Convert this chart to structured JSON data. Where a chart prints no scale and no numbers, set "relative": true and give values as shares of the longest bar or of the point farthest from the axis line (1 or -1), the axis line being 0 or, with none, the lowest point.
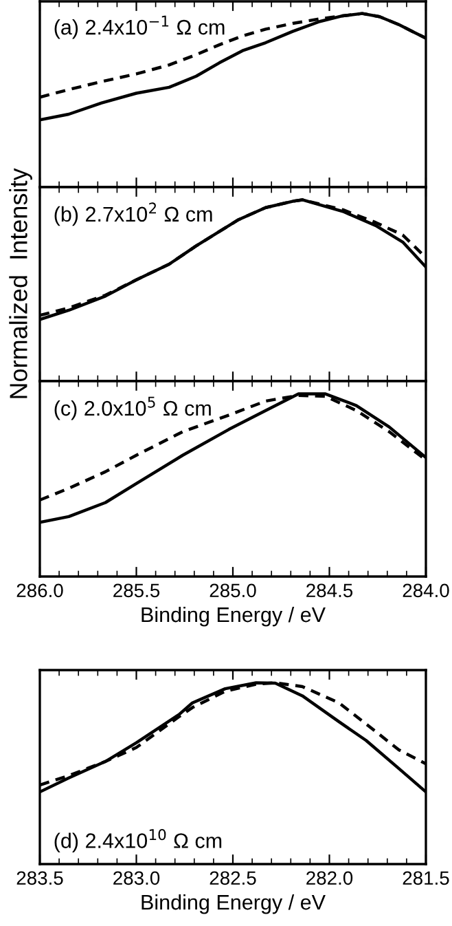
{
  "chart_data": [
    {
      "type": "line",
      "relative": true,
      "tick_labels": false,
      "xlim": [
        286.0,
        284.0
      ],
      "xticks": [
        286.0,
        285.5,
        285.0,
        284.5,
        284.0
      ],
      "annotations": [
        "(a) 2.4x10$^{−1}$ Ω cm"
      ],
      "series": [
        {
          "color": "#000000",
          "line_style": "solid",
          "x": [
            286.0,
            285.85,
            285.68,
            285.5,
            285.33,
            285.19,
            285.07,
            284.95,
            284.83,
            284.69,
            284.55,
            284.43,
            284.33,
            284.24,
            284.14,
            284.07,
            284.0
          ],
          "values": [
            0.387,
            0.42,
            0.485,
            0.541,
            0.575,
            0.639,
            0.716,
            0.786,
            0.832,
            0.897,
            0.954,
            0.987,
            1,
            0.982,
            0.936,
            0.897,
            0.858
          ]
        },
        {
          "color": "#000000",
          "line_style": "dashed",
          "x": [
            286.0,
            285.85,
            285.68,
            285.5,
            285.33,
            285.19,
            285.07,
            284.95,
            284.83,
            284.69,
            284.55,
            284.43,
            284.33,
            284.24,
            284.14,
            284.07,
            284.0
          ],
          "values": [
            0.518,
            0.562,
            0.608,
            0.652,
            0.704,
            0.763,
            0.82,
            0.871,
            0.91,
            0.943,
            0.969,
            0.987,
            1,
            0.982,
            0.936,
            0.897,
            0.858
          ]
        }
      ]
    },
    {
      "type": "line",
      "relative": true,
      "tick_labels": false,
      "xlim": [
        286.0,
        284.0
      ],
      "xticks": [
        286.0,
        285.5,
        285.0,
        284.5,
        284.0
      ],
      "ylabel": "Normalized  Intensity",
      "annotations": [
        "(b) 2.7x10$^{2}$ Ω cm"
      ],
      "series": [
        {
          "color": "#000000",
          "line_style": "solid",
          "x": [
            286.0,
            285.85,
            285.66,
            285.5,
            285.33,
            285.19,
            284.97,
            284.83,
            284.69,
            284.64,
            284.43,
            284.26,
            284.12,
            284.0
          ],
          "values": [
            0.34,
            0.391,
            0.469,
            0.559,
            0.645,
            0.746,
            0.891,
            0.957,
            0.992,
            1,
            0.936,
            0.858,
            0.767,
            0.629
          ]
        },
        {
          "color": "#000000",
          "line_style": "dashed",
          "x": [
            286.0,
            285.85,
            285.66,
            285.5,
            285.33,
            285.19,
            284.97,
            284.83,
            284.69,
            284.64,
            284.43,
            284.26,
            284.12,
            284.0
          ],
          "values": [
            0.363,
            0.404,
            0.474,
            0.559,
            0.645,
            0.746,
            0.891,
            0.957,
            0.992,
            1,
            0.945,
            0.875,
            0.806,
            0.681
          ]
        }
      ]
    },
    {
      "type": "line",
      "relative": true,
      "tick_labels": "x",
      "xlim": [
        286.0,
        284.0
      ],
      "xticks": [
        {
          "value": 286,
          "label": "286.0"
        },
        285.5,
        {
          "value": 285,
          "label": "285.0"
        },
        284.5,
        {
          "value": 284,
          "label": "284.0"
        }
      ],
      "xlabel": "Binding Energy / eV",
      "annotations": [
        "(c) 2.0x10$^{5}$ Ω cm"
      ],
      "series": [
        {
          "color": "#000000",
          "line_style": "solid",
          "x": [
            286.0,
            285.85,
            285.66,
            285.5,
            285.26,
            285.02,
            284.83,
            284.66,
            284.52,
            284.36,
            284.19,
            284.0
          ],
          "values": [
            0.297,
            0.328,
            0.405,
            0.509,
            0.664,
            0.806,
            0.909,
            1,
            1,
            0.936,
            0.819,
            0.651
          ]
        },
        {
          "color": "#000000",
          "line_style": "dashed",
          "x": [
            286.0,
            285.85,
            285.66,
            285.5,
            285.26,
            285.02,
            284.83,
            284.66,
            284.52,
            284.36,
            284.19,
            284.0
          ],
          "values": [
            0.419,
            0.483,
            0.574,
            0.664,
            0.793,
            0.884,
            0.961,
            0.992,
            0.987,
            0.909,
            0.793,
            0.638
          ]
        }
      ]
    },
    {
      "type": "line",
      "relative": true,
      "tick_labels": "x",
      "xlim": [
        283.5,
        281.5
      ],
      "xticks": [
        283.5,
        {
          "value": 283,
          "label": "283.0"
        },
        282.5,
        {
          "value": 282,
          "label": "282.0"
        },
        281.5
      ],
      "xlabel": "Binding Energy / eV",
      "annotations": [
        "(d) 2.4x10$^{10}$ Ω cm"
      ],
      "series": [
        {
          "color": "#000000",
          "line_style": "solid",
          "x": [
            283.5,
            283.35,
            283.16,
            283.0,
            282.78,
            282.71,
            282.54,
            282.38,
            282.28,
            282.14,
            281.95,
            281.81,
            281.64,
            281.5
          ],
          "values": [
            0.398,
            0.475,
            0.566,
            0.669,
            0.824,
            0.889,
            0.967,
            1,
            0.998,
            0.928,
            0.785,
            0.682,
            0.527,
            0.398
          ]
        },
        {
          "color": "#000000",
          "line_style": "dashed",
          "x": [
            283.5,
            283.35,
            283.16,
            283.0,
            282.78,
            282.71,
            282.54,
            282.38,
            282.28,
            282.14,
            281.95,
            281.81,
            281.64,
            281.5
          ],
          "values": [
            0.436,
            0.488,
            0.566,
            0.643,
            0.812,
            0.863,
            0.953,
            0.992,
            1,
            0.979,
            0.889,
            0.773,
            0.63,
            0.553
          ]
        }
      ]
    }
  ]
}
